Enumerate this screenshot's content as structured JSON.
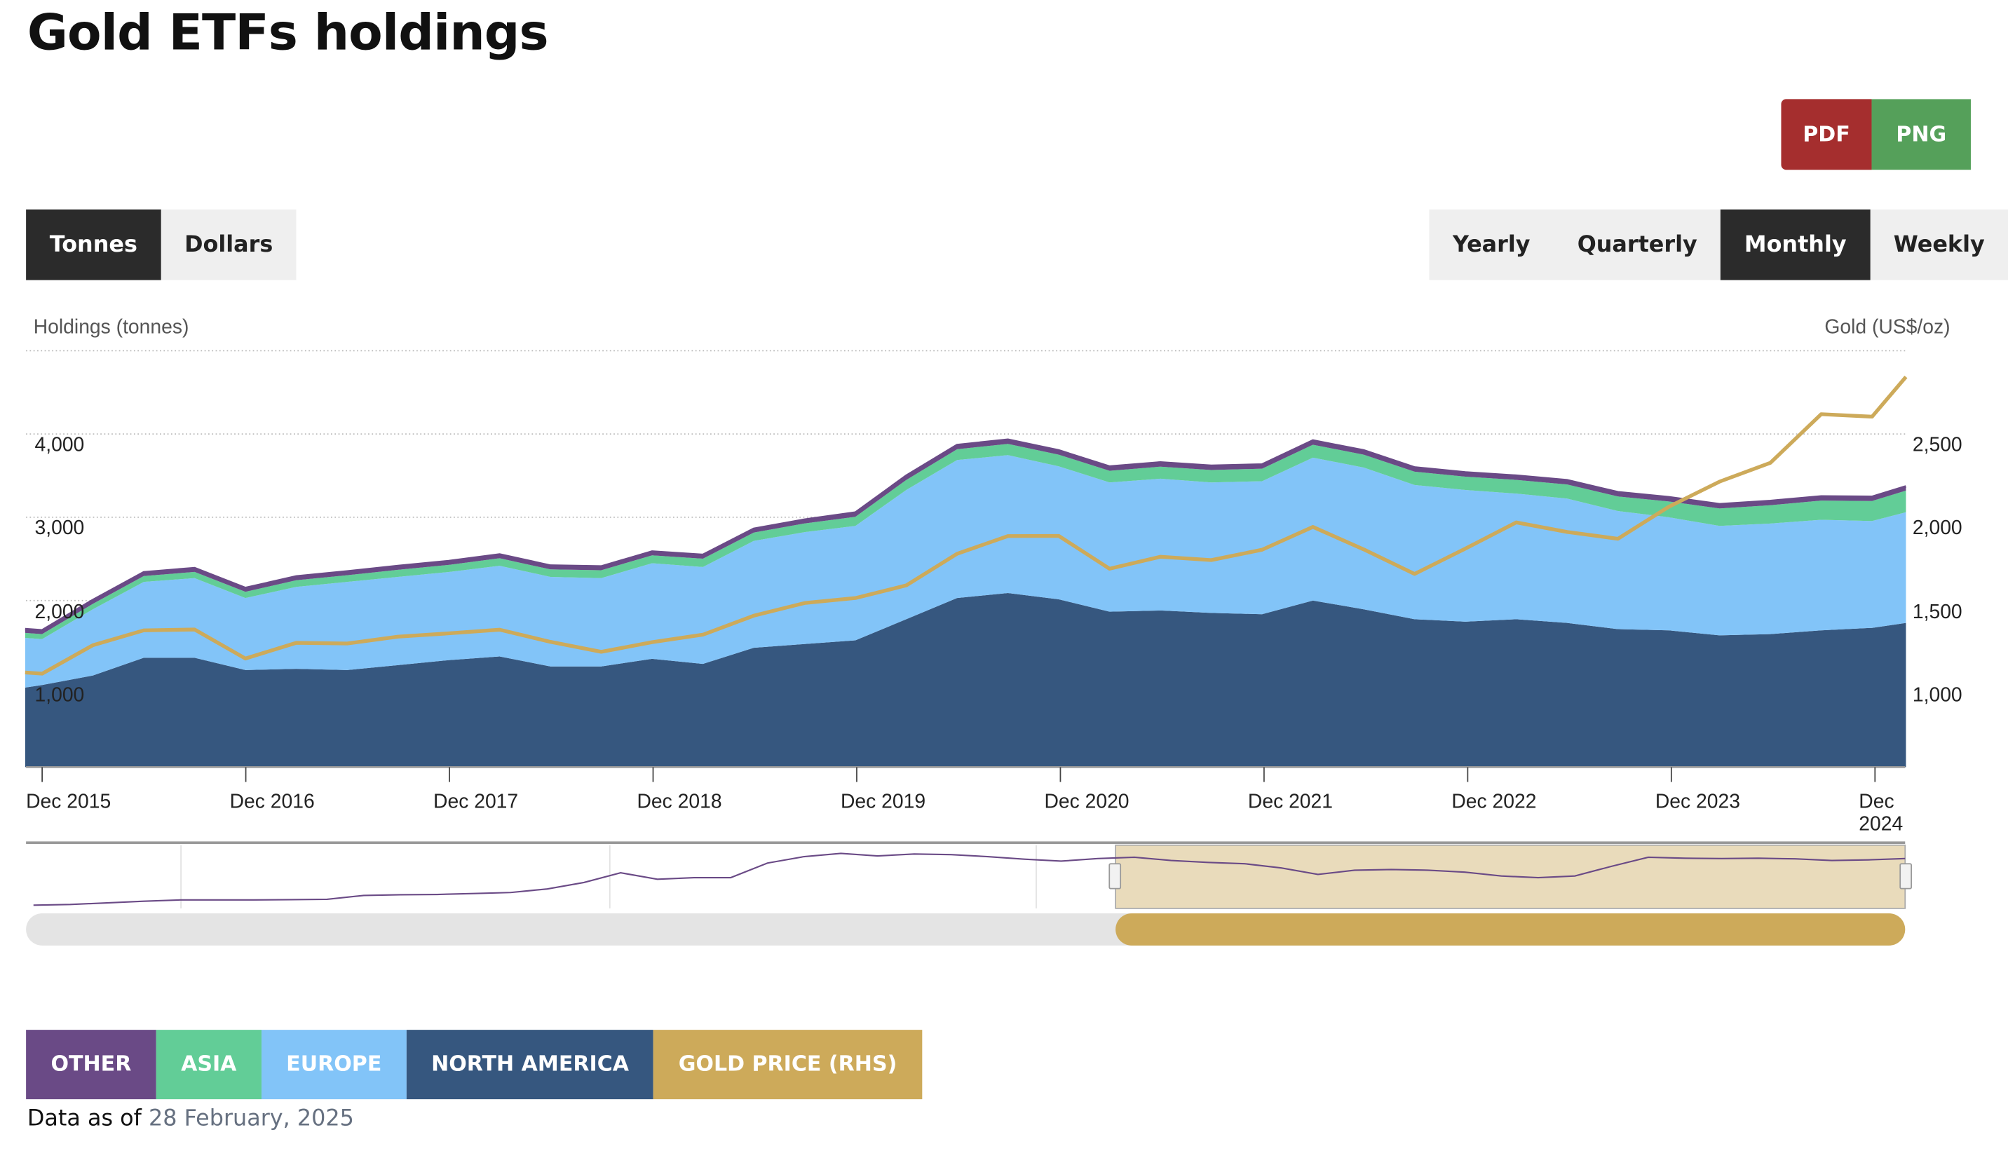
{
  "title": "Gold ETFs holdings",
  "export": {
    "pdf": "PDF",
    "png": "PNG",
    "pdf_color": "#a52e2e",
    "png_color": "#55a05a"
  },
  "unit_toggle": {
    "options": [
      "Tonnes",
      "Dollars"
    ],
    "selected": "Tonnes"
  },
  "frequency_toggle": {
    "options": [
      "Yearly",
      "Quarterly",
      "Monthly",
      "Weekly"
    ],
    "selected": "Monthly"
  },
  "chart_data": {
    "type": "area",
    "stacked": true,
    "ylabel": "Holdings (tonnes)",
    "ylabel_right": "Gold (US$/oz)",
    "ylim": [
      0,
      5000
    ],
    "ylim_right": [
      500,
      3000
    ],
    "yticks": [
      "1,000",
      "2,000",
      "3,000",
      "4,000"
    ],
    "yticks_right": [
      "1,000",
      "1,500",
      "2,000",
      "2,500"
    ],
    "xticks": [
      "Dec 2015",
      "Dec 2016",
      "Dec 2017",
      "Dec 2018",
      "Dec 2019",
      "Dec 2020",
      "Dec 2021",
      "Dec 2022",
      "Dec 2023",
      "Dec 2024"
    ],
    "grid": true,
    "x": [
      "2015-11",
      "2015-12",
      "2016-03",
      "2016-06",
      "2016-09",
      "2016-12",
      "2017-03",
      "2017-06",
      "2017-09",
      "2017-12",
      "2018-03",
      "2018-06",
      "2018-09",
      "2018-12",
      "2019-03",
      "2019-06",
      "2019-09",
      "2019-12",
      "2020-03",
      "2020-06",
      "2020-09",
      "2020-12",
      "2021-03",
      "2021-06",
      "2021-09",
      "2021-12",
      "2022-03",
      "2022-06",
      "2022-09",
      "2022-12",
      "2023-03",
      "2023-06",
      "2023-09",
      "2023-12",
      "2024-03",
      "2024-06",
      "2024-09",
      "2024-12",
      "2025-02"
    ],
    "series": [
      {
        "name": "NORTH AMERICA",
        "color": "#36577f",
        "values": [
          955,
          985,
          1100,
          1313,
          1313,
          1165,
          1180,
          1165,
          1224,
          1284,
          1328,
          1209,
          1209,
          1300,
          1239,
          1433,
          1478,
          1522,
          1776,
          2030,
          2090,
          2015,
          1866,
          1881,
          1851,
          1836,
          2000,
          1895,
          1776,
          1746,
          1776,
          1731,
          1657,
          1642,
          1582,
          1597,
          1642,
          1672,
          1731
        ]
      },
      {
        "name": "EUROPE",
        "color": "#82c4f8",
        "values": [
          597,
          552,
          796,
          911,
          956,
          865,
          984,
          1059,
          1060,
          1059,
          1090,
          1075,
          1060,
          1148,
          1164,
          1283,
          1343,
          1374,
          1552,
          1657,
          1656,
          1597,
          1552,
          1582,
          1567,
          1597,
          1716,
          1702,
          1612,
          1582,
          1508,
          1493,
          1418,
          1358,
          1314,
          1328,
          1328,
          1283,
          1329
        ]
      },
      {
        "name": "ASIA",
        "color": "#62cd97",
        "values": [
          60,
          60,
          65,
          70,
          75,
          75,
          80,
          80,
          85,
          85,
          90,
          90,
          95,
          95,
          100,
          100,
          105,
          110,
          120,
          130,
          135,
          140,
          140,
          145,
          150,
          150,
          155,
          155,
          160,
          160,
          165,
          170,
          175,
          190,
          210,
          220,
          230,
          240,
          260
        ]
      },
      {
        "name": "OTHER",
        "color": "#6a4a86",
        "values": [
          45,
          45,
          45,
          45,
          45,
          45,
          45,
          45,
          45,
          45,
          45,
          45,
          45,
          45,
          45,
          45,
          45,
          50,
          50,
          50,
          50,
          50,
          50,
          50,
          50,
          50,
          50,
          50,
          50,
          50,
          50,
          50,
          50,
          50,
          50,
          50,
          50,
          50,
          50
        ]
      },
      {
        "name": "GOLD PRICE (RHS)",
        "color": "#cdaa5a",
        "axis": "right",
        "type": "line",
        "values": [
          1068,
          1061,
          1232,
          1321,
          1326,
          1152,
          1246,
          1242,
          1283,
          1303,
          1325,
          1252,
          1192,
          1250,
          1295,
          1409,
          1485,
          1515,
          1591,
          1781,
          1887,
          1888,
          1691,
          1763,
          1743,
          1805,
          1942,
          1807,
          1660,
          1812,
          1969,
          1912,
          1871,
          2063,
          2214,
          2327,
          2619,
          2604,
          2843
        ]
      }
    ],
    "navigator": {
      "selected_range": [
        0.58,
        1.0
      ],
      "values": [
        400,
        420,
        470,
        520,
        560,
        560,
        560,
        570,
        580,
        700,
        720,
        730,
        760,
        790,
        900,
        1100,
        1400,
        1200,
        1250,
        1250,
        1700,
        1900,
        2000,
        1920,
        1980,
        1960,
        1900,
        1820,
        1760,
        1840,
        1880,
        1780,
        1720,
        1680,
        1550,
        1350,
        1480,
        1500,
        1480,
        1420,
        1300,
        1250,
        1300,
        1600,
        1880,
        1850,
        1840,
        1850,
        1830,
        1780,
        1800,
        1840
      ]
    }
  },
  "legend": [
    "OTHER",
    "ASIA",
    "EUROPE",
    "NORTH AMERICA",
    "GOLD PRICE (RHS)"
  ],
  "footer": {
    "label": "Data as of",
    "date": "28 February, 2025"
  }
}
